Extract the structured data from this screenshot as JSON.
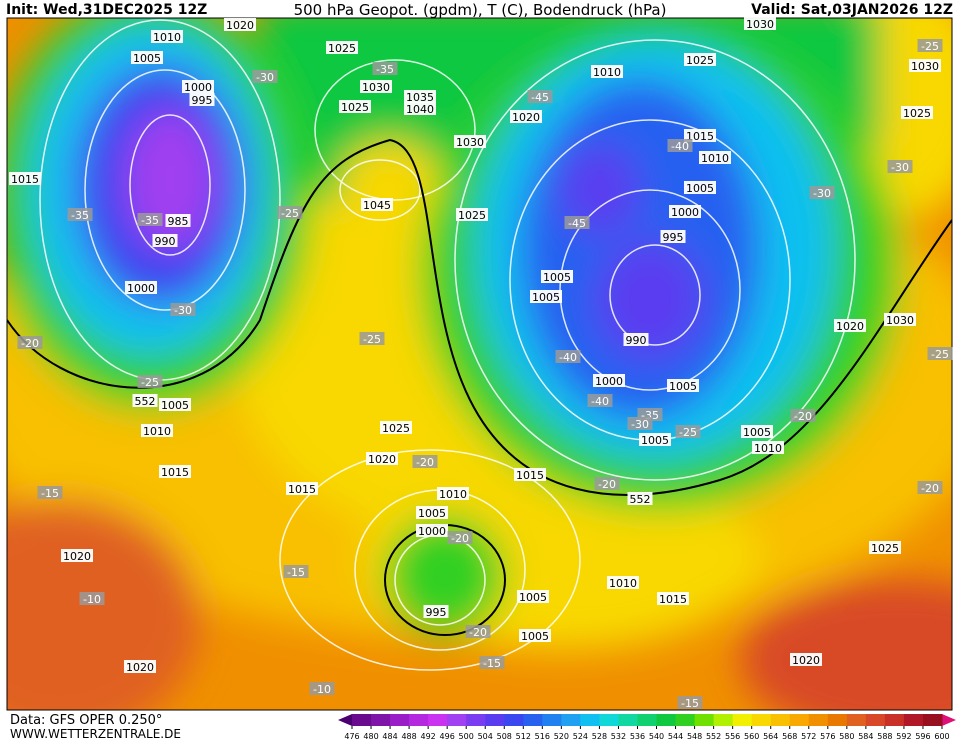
{
  "header": {
    "init": "Init: Wed,31DEC2025 12Z",
    "title": "500 hPa Geopot. (gpdm), T (C), Bodendruck (hPa)",
    "valid": "Valid: Sat,03JAN2026 12Z"
  },
  "footer": {
    "data": "Data: GFS OPER 0.250°",
    "site": "WWW.WETTERZENTRALE.DE"
  },
  "legend": {
    "ticks": [
      476,
      480,
      484,
      488,
      492,
      496,
      500,
      504,
      508,
      512,
      516,
      520,
      524,
      528,
      532,
      536,
      540,
      544,
      548,
      552,
      556,
      560,
      564,
      568,
      572,
      576,
      580,
      584,
      588,
      592,
      596,
      600
    ],
    "colors": [
      "#6a0a8c",
      "#7e14a8",
      "#9a1ec8",
      "#b428e0",
      "#c832f0",
      "#a040f0",
      "#7a3cf0",
      "#5a3cf0",
      "#3c46f0",
      "#2860f0",
      "#2080f0",
      "#20a0f0",
      "#10c0f0",
      "#10d8d8",
      "#10d8a0",
      "#10d070",
      "#10c840",
      "#30d020",
      "#70e000",
      "#b0f000",
      "#f0f000",
      "#f8d800",
      "#f8c000",
      "#f8a800",
      "#f09000",
      "#e87800",
      "#e06020",
      "#d84828",
      "#c83028",
      "#b01828",
      "#981020"
    ]
  },
  "map": {
    "labels": [
      "1010",
      "1005",
      "1000",
      "995",
      "985",
      "990",
      "1015",
      "-35",
      "-35",
      "1000",
      "-30",
      "-20",
      "-25",
      "1005",
      "1010",
      "1015",
      "1020",
      "1025",
      "1030",
      "1035",
      "1040",
      "1025",
      "1030",
      "1025",
      "1045",
      "-30",
      "-35",
      "-25",
      "-25",
      "1025",
      "1020",
      "-20",
      "1015",
      "1015",
      "1010",
      "1005",
      "1000",
      "-20",
      "995",
      "1005",
      "1005",
      "-20",
      "-15",
      "-15",
      "1020",
      "-10",
      "1020",
      "-10",
      "1010",
      "1025",
      "1030",
      "1020",
      "-45",
      "1015",
      "-40",
      "1010",
      "1005",
      "1000",
      "995",
      "-45",
      "1005",
      "1005",
      "990",
      "-40",
      "1000",
      "1005",
      "-40",
      "-35",
      "-30",
      "1005",
      "-25",
      "1005",
      "1010",
      "-20",
      "-20",
      "1010",
      "1015",
      "1020",
      "1025",
      "-20",
      "1020",
      "1030",
      "-25",
      "-30",
      "-30",
      "1025",
      "1030",
      "-25",
      "-15",
      "-15",
      "552",
      "552"
    ]
  }
}
